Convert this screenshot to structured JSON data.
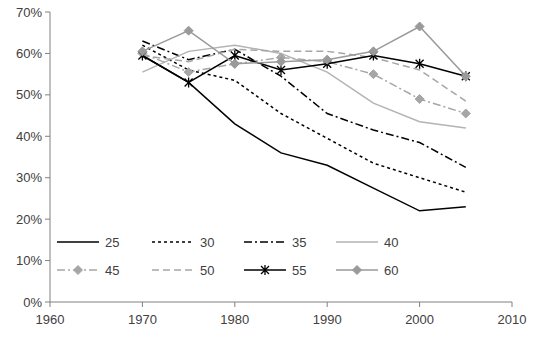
{
  "chart_data": {
    "type": "line",
    "x": [
      1970,
      1975,
      1980,
      1985,
      1990,
      1995,
      2000,
      2005
    ],
    "series": [
      {
        "name": "25",
        "color": "#000000",
        "line_style": "solid",
        "values": [
          59.5,
          53,
          43,
          36,
          33,
          27.5,
          22,
          23
        ]
      },
      {
        "name": "30",
        "color": "#000000",
        "line_style": "dashed",
        "values": [
          62,
          56,
          53.5,
          45.5,
          39.5,
          33.5,
          30,
          26.5
        ]
      },
      {
        "name": "35",
        "color": "#000000",
        "line_style": "dashdot",
        "values": [
          63,
          58.5,
          61,
          54.5,
          45.5,
          41.5,
          38.5,
          32.5
        ]
      },
      {
        "name": "40",
        "color": "#b3b3b3",
        "line_style": "solid",
        "values": [
          55.5,
          60.5,
          62,
          60,
          55.5,
          48,
          43.5,
          42
        ]
      },
      {
        "name": "45",
        "color": "#a6a6a6",
        "line_style": "dashdot",
        "marker": "diamond",
        "values": [
          60,
          55.5,
          57.5,
          59,
          58,
          55,
          49,
          45.5
        ]
      },
      {
        "name": "50",
        "color": "#a6a6a6",
        "line_style": "longdash",
        "values": [
          59.5,
          58,
          61,
          60.5,
          60.5,
          59,
          56,
          48.5
        ]
      },
      {
        "name": "55",
        "color": "#000000",
        "line_style": "solid",
        "marker": "star",
        "values": [
          59.5,
          53,
          59.5,
          56,
          57.5,
          59.5,
          57.5,
          54.5
        ]
      },
      {
        "name": "60",
        "color": "#9a9a9a",
        "line_style": "solid",
        "marker": "diamond",
        "values": [
          60.5,
          65.5,
          57.5,
          58,
          58.5,
          60.5,
          66.5,
          54.5
        ]
      }
    ],
    "xlim": [
      1960,
      2010
    ],
    "xticks": [
      1960,
      1970,
      1980,
      1990,
      2000,
      2010
    ],
    "ylim": [
      0,
      70
    ],
    "yticks": [
      {
        "value": 0,
        "label": "0%"
      },
      {
        "value": 10,
        "label": "10%"
      },
      {
        "value": 20,
        "label": "20%"
      },
      {
        "value": 30,
        "label": "30%"
      },
      {
        "value": 40,
        "label": "40%"
      },
      {
        "value": 50,
        "label": "50%"
      },
      {
        "value": 60,
        "label": "60%"
      },
      {
        "value": 70,
        "label": "70%"
      }
    ],
    "grid": false,
    "legend": "lower left"
  }
}
